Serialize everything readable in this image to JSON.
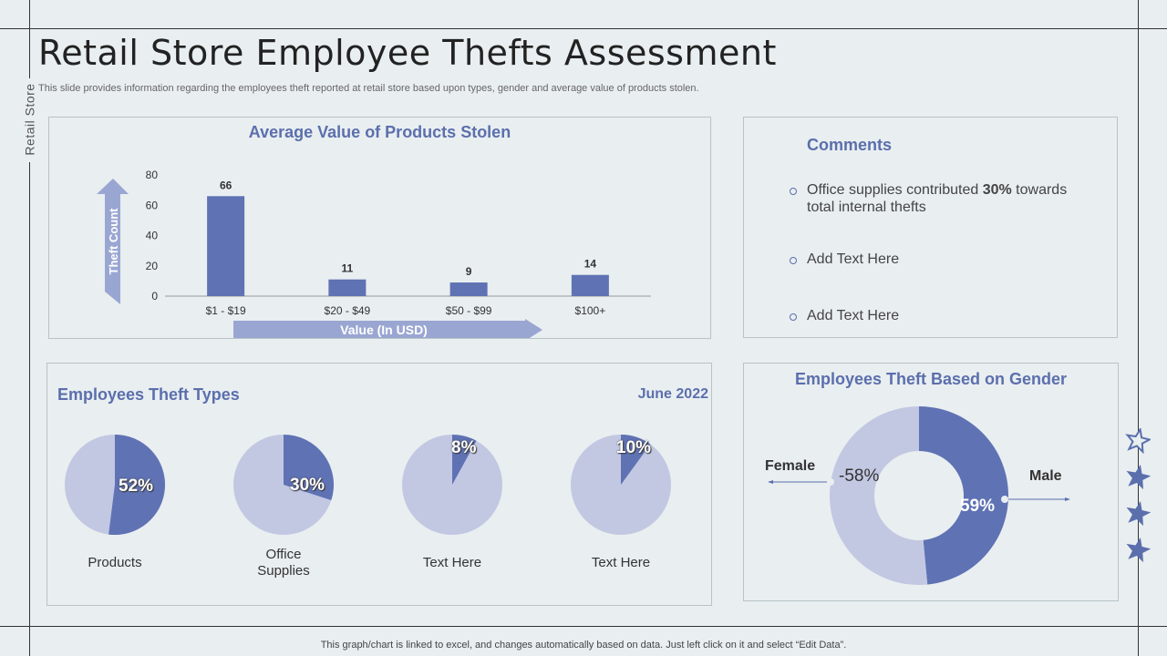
{
  "sidebar_label": "Retail Store",
  "title": "Retail Store Employee Thefts Assessment",
  "subtitle": "This slide provides information regarding the employees theft reported at retail store based upon types, gender and average value of products stolen.",
  "footer": "This graph/chart is linked to excel,  and changes automatically based on data. Just left click on it and select “Edit Data”.",
  "colors": {
    "dark": "#5f72b4",
    "light": "#c2c8e2",
    "accent": "#5b6fad"
  },
  "bar_panel": {
    "title": "Average Value of Products Stolen",
    "y_arrow_label": "Theft Count",
    "x_arrow_label": "Value (In USD)"
  },
  "comments": {
    "title": "Comments",
    "items": [
      {
        "pre": "Office supplies contributed ",
        "bold": "30%",
        "post": " towards total internal thefts"
      },
      {
        "pre": "Add Text Here",
        "bold": "",
        "post": ""
      },
      {
        "pre": "Add Text Here",
        "bold": "",
        "post": ""
      }
    ]
  },
  "types_panel": {
    "title": "Employees Theft Types",
    "date": "June 2022"
  },
  "gender_panel": {
    "title": "Employees Theft Based on Gender"
  },
  "stars": [
    "star-outline-icon",
    "star-icon",
    "star-icon",
    "star-icon"
  ],
  "chart_data": [
    {
      "type": "bar",
      "title": "Average Value of Products Stolen",
      "xlabel": "Value (In USD)",
      "ylabel": "Theft Count",
      "categories": [
        "$1 - $19",
        "$20 - $49",
        "$50 - $99",
        "$100+"
      ],
      "values": [
        66,
        11,
        9,
        14
      ],
      "ylim": [
        0,
        80
      ],
      "yticks": [
        0,
        20,
        40,
        60,
        80
      ]
    },
    {
      "type": "pie",
      "title": "Employees Theft Types",
      "slices": [
        {
          "name": "Products",
          "value": 52,
          "label": "52%"
        },
        {
          "name": "Office\nSupplies",
          "value": 30,
          "label": "30%"
        },
        {
          "name": "Text Here",
          "value": 8,
          "label": "8%"
        },
        {
          "name": "Text Here",
          "value": 10,
          "label": "10%"
        }
      ]
    },
    {
      "type": "pie",
      "title": "Employees Theft Based on Gender",
      "series": [
        {
          "name": "Female",
          "label": "-58%"
        },
        {
          "name": "Male",
          "label": "59%"
        }
      ]
    }
  ]
}
